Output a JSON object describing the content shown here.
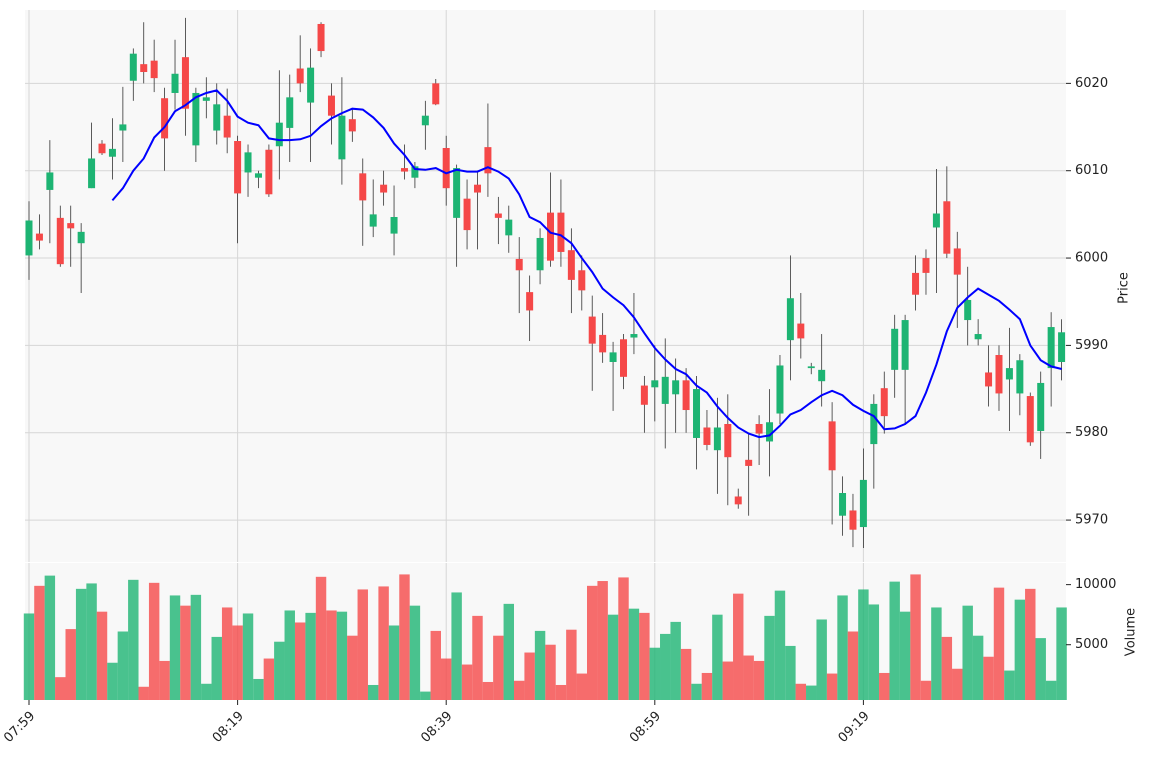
{
  "chart_data": {
    "type": "candlestick",
    "categories": [
      "07:59",
      null,
      null,
      null,
      null,
      null,
      null,
      null,
      null,
      null,
      null,
      null,
      null,
      null,
      null,
      null,
      null,
      null,
      null,
      null,
      "08:19",
      null,
      null,
      null,
      null,
      null,
      null,
      null,
      null,
      null,
      null,
      null,
      null,
      null,
      null,
      null,
      null,
      null,
      null,
      null,
      "08:39",
      null,
      null,
      null,
      null,
      null,
      null,
      null,
      null,
      null,
      null,
      null,
      null,
      null,
      null,
      null,
      null,
      null,
      null,
      null,
      "08:59",
      null,
      null,
      null,
      null,
      null,
      null,
      null,
      null,
      null,
      null,
      null,
      null,
      null,
      null,
      null,
      null,
      null,
      null,
      null,
      "09:19",
      null,
      null,
      null,
      null,
      null,
      null,
      null,
      null,
      null,
      null,
      null,
      null,
      null,
      null,
      null,
      null,
      null,
      null,
      null
    ],
    "open": [
      6000.3,
      6002.8,
      6007.8,
      6004.6,
      6004.0,
      6001.7,
      6008.0,
      6013.1,
      6011.6,
      6014.6,
      6020.3,
      6022.2,
      6022.6,
      6018.3,
      6018.9,
      6023.0,
      6012.9,
      6018.0,
      6014.6,
      6016.3,
      6013.4,
      6009.8,
      6009.2,
      6012.4,
      6012.8,
      6014.9,
      6021.7,
      6017.8,
      6026.8,
      6018.6,
      6011.3,
      6015.9,
      6009.7,
      6003.6,
      6008.4,
      6002.8,
      6010.3,
      6009.2,
      6015.2,
      6020.0,
      6012.6,
      6004.6,
      6006.8,
      6008.4,
      6012.7,
      6005.1,
      6002.6,
      5999.9,
      5996.1,
      5998.6,
      6005.2,
      6005.2,
      6000.9,
      5998.6,
      5993.3,
      5991.2,
      5988.1,
      5990.7,
      5990.9,
      5985.4,
      5985.2,
      5983.3,
      5984.4,
      5986.0,
      5979.4,
      5980.6,
      5978.0,
      5981.0,
      5972.7,
      5976.9,
      5981.0,
      5979.0,
      5982.2,
      5990.6,
      5992.5,
      5987.4,
      5985.9,
      5981.3,
      5970.5,
      5971.1,
      5969.2,
      5978.7,
      5985.1,
      5987.2,
      5987.2,
      5998.3,
      6000.0,
      6003.5,
      6006.5,
      6001.1,
      5992.9,
      5990.7,
      5986.9,
      5988.9,
      5986.1,
      5984.5,
      5984.2,
      5980.2,
      5987.4,
      5988.1
    ],
    "high": [
      6006.5,
      6005.0,
      6013.5,
      6006.0,
      6006.0,
      6004.0,
      6015.5,
      6013.5,
      6016.0,
      6019.6,
      6024.0,
      6027.0,
      6025.0,
      6019.5,
      6025.0,
      6027.5,
      6019.5,
      6020.7,
      6020.0,
      6019.4,
      6014.0,
      6013.0,
      6010.0,
      6013.0,
      6021.5,
      6021.0,
      6025.5,
      6024.0,
      6027.0,
      6020.0,
      6020.7,
      6017.0,
      6011.4,
      6009.0,
      6010.0,
      6008.3,
      6013.0,
      6011.0,
      6018.0,
      6020.5,
      6014.0,
      6010.7,
      6009.0,
      6010.0,
      6017.7,
      6007.0,
      6006.0,
      6002.4,
      5998.0,
      6003.4,
      6009.8,
      6009.0,
      6003.4,
      6000.3,
      5995.7,
      5993.7,
      5990.4,
      5991.3,
      5996.0,
      5986.5,
      5990.0,
      5990.8,
      5988.5,
      5987.4,
      5986.5,
      5982.6,
      5984.0,
      5984.4,
      5973.6,
      5980.0,
      5982.0,
      5985.0,
      5988.9,
      6000.3,
      5996.0,
      5988.0,
      5991.3,
      5983.5,
      5975.0,
      5973.0,
      5978.2,
      5984.4,
      5987.0,
      5993.5,
      5993.5,
      6000.3,
      6001.0,
      6010.2,
      6010.5,
      6003.0,
      5999.0,
      5993.0,
      5990.0,
      5990.0,
      5992.0,
      5989.0,
      5984.6,
      5987.0,
      5993.8,
      5993.0
    ],
    "low": [
      5997.5,
      6001.0,
      6001.7,
      5999.0,
      5999.0,
      5996.0,
      6008.0,
      6011.8,
      6009.0,
      6011.0,
      6018.0,
      6020.0,
      6019.0,
      6010.0,
      6017.0,
      6014.0,
      6011.0,
      6016.0,
      6013.0,
      6012.0,
      6001.7,
      6007.0,
      6008.0,
      6007.0,
      6009.0,
      6011.0,
      6019.0,
      6011.0,
      6023.0,
      6013.0,
      6008.4,
      6013.3,
      6001.4,
      6002.4,
      6006.0,
      6000.3,
      6009.0,
      6008.0,
      6012.4,
      6017.5,
      6006.0,
      5999.0,
      6001.0,
      6001.0,
      6007.0,
      6001.6,
      6000.6,
      5993.7,
      5990.5,
      5997.0,
      5999.0,
      5999.0,
      5993.7,
      5994.0,
      5984.8,
      5988.0,
      5982.5,
      5985.0,
      5989.0,
      5980.0,
      5981.3,
      5978.2,
      5980.0,
      5980.0,
      5975.8,
      5978.0,
      5973.0,
      5971.7,
      5971.3,
      5970.5,
      5976.3,
      5975.0,
      5981.0,
      5986.0,
      5988.5,
      5986.7,
      5983.0,
      5969.5,
      5968.2,
      5966.9,
      5966.8,
      5973.6,
      5979.9,
      5984.0,
      5981.0,
      5994.0,
      5995.8,
      5996.0,
      6000.0,
      5992.0,
      5990.0,
      5990.0,
      5983.0,
      5982.5,
      5980.2,
      5982.0,
      5978.5,
      5977.0,
      5983.0,
      5986.0
    ],
    "close": [
      6004.3,
      6002.0,
      6009.8,
      5999.3,
      6003.4,
      6003.0,
      6011.4,
      6012.0,
      6012.5,
      6015.3,
      6023.4,
      6021.3,
      6020.6,
      6013.7,
      6021.1,
      6017.1,
      6018.9,
      6018.4,
      6017.6,
      6013.8,
      6007.4,
      6012.1,
      6009.7,
      6007.3,
      6015.5,
      6018.4,
      6020.0,
      6021.8,
      6023.7,
      6016.3,
      6016.3,
      6014.5,
      6006.6,
      6005.0,
      6007.5,
      6004.7,
      6009.9,
      6010.5,
      6016.3,
      6017.6,
      6008.0,
      6010.3,
      6003.2,
      6007.5,
      6009.7,
      6004.6,
      6004.4,
      5998.6,
      5994.0,
      6002.3,
      5999.7,
      6000.7,
      5997.5,
      5996.3,
      5990.2,
      5989.2,
      5989.2,
      5986.4,
      5991.3,
      5983.2,
      5986.0,
      5986.4,
      5986.0,
      5982.6,
      5985.0,
      5978.6,
      5980.6,
      5977.2,
      5971.8,
      5976.2,
      5979.9,
      5981.2,
      5987.7,
      5995.4,
      5990.8,
      5987.6,
      5987.2,
      5975.7,
      5973.1,
      5968.9,
      5974.6,
      5983.3,
      5981.9,
      5991.9,
      5992.9,
      5995.8,
      5998.3,
      6005.1,
      6000.5,
      5998.1,
      5995.2,
      5991.3,
      5985.3,
      5984.5,
      5987.4,
      5988.3,
      5978.9,
      5985.7,
      5992.1,
      5991.5
    ],
    "up_color": "#1db473",
    "down_color": "#f54848",
    "ma": {
      "color": "#0000ff",
      "values": [
        null,
        null,
        null,
        null,
        null,
        null,
        null,
        null,
        6006.6,
        6008.0,
        6010.0,
        6011.4,
        6013.8,
        6015.0,
        6016.8,
        6017.5,
        6018.4,
        6018.9,
        6019.2,
        6018.0,
        6016.2,
        6015.5,
        6015.2,
        6013.7,
        6013.5,
        6013.5,
        6013.6,
        6014.0,
        6015.1,
        6016.0,
        6016.6,
        6017.1,
        6017.0,
        6016.1,
        6014.9,
        6013.1,
        6011.8,
        6010.2,
        6010.1,
        6010.3,
        6009.7,
        6010.1,
        6009.9,
        6009.9,
        6010.4,
        6009.9,
        6009.1,
        6007.3,
        6004.7,
        6004.1,
        6002.9,
        6002.6,
        6001.7,
        6000.0,
        5998.4,
        5996.5,
        5995.5,
        5994.6,
        5993.2,
        5991.4,
        5989.7,
        5988.4,
        5987.3,
        5986.7,
        5985.4,
        5984.6,
        5983.0,
        5981.7,
        5980.6,
        5979.9,
        5979.5,
        5979.7,
        5980.8,
        5982.1,
        5982.6,
        5983.5,
        5984.3,
        5984.8,
        5984.3,
        5983.2,
        5982.5,
        5981.9,
        5980.4,
        5980.5,
        5981.0,
        5981.9,
        5984.6,
        5987.8,
        5991.6,
        5994.3,
        5995.5,
        5996.5,
        5995.8,
        5995.1,
        5994.1,
        5993.0,
        5990.0,
        5988.3,
        5987.6,
        5987.3
      ]
    },
    "ylabel": "Price",
    "ylim": [
      5965.2,
      6028.4
    ],
    "yticks": [
      5970,
      5980,
      5990,
      6000,
      6010,
      6020
    ],
    "grid": true,
    "volume": {
      "ylabel": "Volume",
      "ylim": [
        400,
        11800
      ],
      "yticks": [
        5000,
        10000
      ],
      "values": [
        7600,
        9900,
        10750,
        2300,
        6300,
        9650,
        10100,
        7750,
        3500,
        6100,
        10400,
        1500,
        10150,
        3650,
        9100,
        8250,
        9150,
        1750,
        5650,
        8100,
        6600,
        7600,
        2150,
        3850,
        5250,
        7850,
        6850,
        7650,
        10650,
        7850,
        7750,
        5750,
        9600,
        1650,
        9850,
        6600,
        10850,
        8250,
        1100,
        6150,
        3850,
        9350,
        3350,
        7400,
        1900,
        5750,
        8400,
        2000,
        4350,
        6150,
        5000,
        1650,
        6250,
        2600,
        9900,
        10300,
        7500,
        10600,
        8000,
        7650,
        4750,
        5900,
        6900,
        4650,
        1750,
        2650,
        7500,
        3600,
        9250,
        4100,
        3650,
        7400,
        9500,
        4900,
        1750,
        1600,
        7100,
        2600,
        9100,
        6100,
        9600,
        8350,
        2650,
        10250,
        7750,
        10850,
        2000,
        8100,
        5650,
        3000,
        8250,
        5750,
        4000,
        9750,
        2850,
        8750,
        9650,
        5550,
        2000,
        8100
      ]
    }
  }
}
